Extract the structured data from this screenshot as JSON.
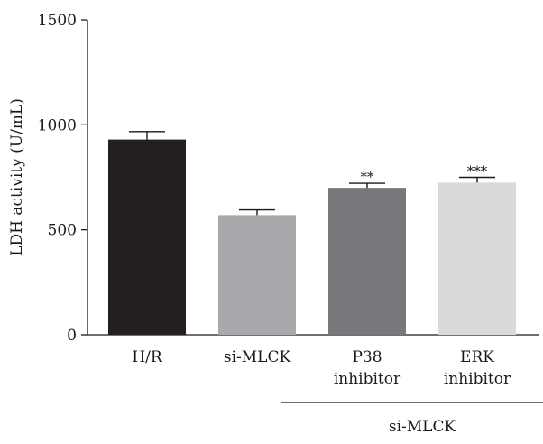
{
  "chart_data": {
    "type": "bar",
    "ylabel": "LDH activity (U/mL)",
    "ylim": [
      0,
      1500
    ],
    "yticks": [
      0,
      500,
      1000,
      1500
    ],
    "categories": [
      [
        "H/R"
      ],
      [
        "si-MLCK"
      ],
      [
        "P38",
        "inhibitor"
      ],
      [
        "ERK",
        "inhibitor"
      ]
    ],
    "values": [
      930,
      570,
      700,
      725
    ],
    "errors": [
      38,
      25,
      22,
      25
    ],
    "colors": [
      "#231f20",
      "#a7a9ac",
      "#77787b",
      "#d9dadb"
    ],
    "significance": [
      "",
      "",
      "**",
      "***"
    ],
    "group": {
      "label": "si-MLCK",
      "spans": [
        2,
        3
      ]
    },
    "grid": false,
    "legend": "none"
  }
}
